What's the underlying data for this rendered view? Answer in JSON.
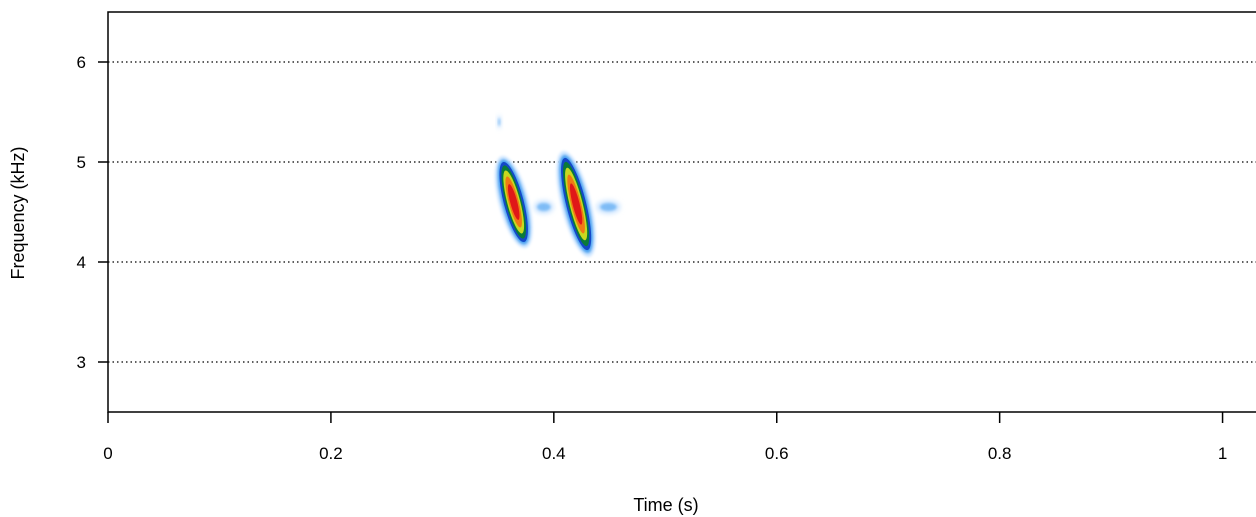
{
  "chart_data": {
    "type": "heatmap",
    "subtype": "spectrogram",
    "xlabel": "Time (s)",
    "ylabel": "Frequency (kHz)",
    "xlim": [
      0,
      1.03
    ],
    "ylim": [
      2.5,
      6.5
    ],
    "x_ticks": [
      0,
      0.2,
      0.4,
      0.6,
      0.8,
      1
    ],
    "x_tick_labels": [
      "0",
      "0.2",
      "0.4",
      "0.6",
      "0.8",
      "1"
    ],
    "y_ticks": [
      3,
      4,
      5,
      6
    ],
    "y_tick_labels": [
      "3",
      "4",
      "5",
      "6"
    ],
    "grid": {
      "horizontal": true,
      "style": "dotted"
    },
    "colormap": [
      "#ffffff",
      "#cfe6ff",
      "#4aa0f0",
      "#1448c8",
      "#0a7a3a",
      "#c8d820",
      "#f07a14",
      "#e01818"
    ],
    "syllables": [
      {
        "t_start": 0.355,
        "t_end": 0.375,
        "f_start": 5.0,
        "f_end": 4.15,
        "peak_t": 0.364,
        "peak_f": 4.6
      },
      {
        "t_start": 0.41,
        "t_end": 0.432,
        "f_start": 5.08,
        "f_end": 4.1,
        "peak_t": 0.42,
        "peak_f": 4.58
      }
    ],
    "faint_energy": [
      {
        "t_start": 0.382,
        "t_end": 0.4,
        "f": 4.55
      },
      {
        "t_start": 0.438,
        "t_end": 0.46,
        "f": 4.55
      },
      {
        "t_start": 0.35,
        "t_end": 0.352,
        "f": 5.4
      }
    ]
  }
}
